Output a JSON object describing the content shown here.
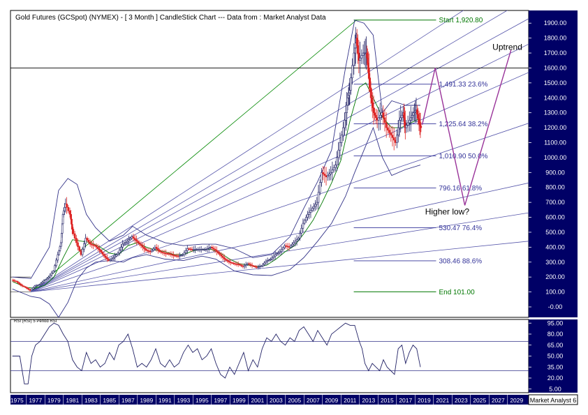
{
  "chart_data": {
    "type": "candlestick",
    "title": "Gold Futures (GCSpot) (NYMEX) -  [ 3 Month ] CandleStick Chart --- Data from : Market Analyst Data",
    "x_range": [
      1974.3,
      2030.3
    ],
    "y_range": [
      -70,
      1985
    ],
    "y_ticks": [
      -0.0,
      100,
      200,
      300,
      400,
      500,
      600,
      700,
      800,
      900,
      1000,
      1100,
      1200,
      1300,
      1400,
      1500,
      1600,
      1700,
      1800,
      1900
    ],
    "y_tick_labels": [
      "-0.00",
      "100.00",
      "200.00",
      "300.00",
      "400.00",
      "500.00",
      "600.00",
      "700.00",
      "800.00",
      "900.00",
      "1000.00",
      "1100.00",
      "1200.00",
      "1300.00",
      "1400.00",
      "1500.00",
      "1600.00",
      "1700.00",
      "1800.00",
      "1900.00"
    ],
    "x_tick_labels": [
      "1975",
      "1977",
      "1979",
      "1981",
      "1983",
      "1985",
      "1987",
      "1989",
      "1991",
      "1993",
      "1995",
      "1997",
      "1999",
      "2001",
      "2003",
      "2005",
      "2007",
      "2009",
      "2011",
      "2013",
      "2015",
      "2017",
      "2019",
      "2021",
      "2023",
      "2025",
      "2027",
      "2029"
    ],
    "x_tick_years": [
      1975,
      1977,
      1979,
      1981,
      1983,
      1985,
      1987,
      1989,
      1991,
      1993,
      1995,
      1997,
      1999,
      2001,
      2003,
      2005,
      2007,
      2009,
      2011,
      2013,
      2015,
      2017,
      2019,
      2021,
      2023,
      2025,
      2027,
      2029
    ],
    "price_path": [
      [
        1974.5,
        180
      ],
      [
        1975.0,
        170
      ],
      [
        1975.5,
        145
      ],
      [
        1976.0,
        130
      ],
      [
        1976.5,
        110
      ],
      [
        1977.0,
        140
      ],
      [
        1977.5,
        150
      ],
      [
        1978.0,
        175
      ],
      [
        1978.5,
        200
      ],
      [
        1979.0,
        240
      ],
      [
        1979.5,
        350
      ],
      [
        1979.8,
        430
      ],
      [
        1980.0,
        620
      ],
      [
        1980.3,
        690
      ],
      [
        1980.8,
        620
      ],
      [
        1981.0,
        520
      ],
      [
        1981.5,
        430
      ],
      [
        1982.0,
        350
      ],
      [
        1982.5,
        460
      ],
      [
        1983.0,
        420
      ],
      [
        1983.5,
        410
      ],
      [
        1984.0,
        380
      ],
      [
        1984.5,
        340
      ],
      [
        1985.0,
        310
      ],
      [
        1985.5,
        330
      ],
      [
        1986.0,
        360
      ],
      [
        1986.5,
        420
      ],
      [
        1987.0,
        440
      ],
      [
        1987.5,
        470
      ],
      [
        1988.0,
        440
      ],
      [
        1988.5,
        410
      ],
      [
        1989.0,
        380
      ],
      [
        1989.5,
        370
      ],
      [
        1990.0,
        400
      ],
      [
        1990.5,
        370
      ],
      [
        1991.0,
        360
      ],
      [
        1991.5,
        355
      ],
      [
        1992.0,
        345
      ],
      [
        1992.5,
        340
      ],
      [
        1993.0,
        350
      ],
      [
        1993.5,
        390
      ],
      [
        1994.0,
        385
      ],
      [
        1994.5,
        385
      ],
      [
        1995.0,
        385
      ],
      [
        1995.5,
        385
      ],
      [
        1996.0,
        400
      ],
      [
        1996.5,
        380
      ],
      [
        1997.0,
        350
      ],
      [
        1997.5,
        320
      ],
      [
        1998.0,
        300
      ],
      [
        1998.5,
        290
      ],
      [
        1999.0,
        285
      ],
      [
        1999.5,
        270
      ],
      [
        2000.0,
        290
      ],
      [
        2000.5,
        275
      ],
      [
        2001.0,
        265
      ],
      [
        2001.5,
        275
      ],
      [
        2002.0,
        305
      ],
      [
        2002.5,
        320
      ],
      [
        2003.0,
        350
      ],
      [
        2003.5,
        370
      ],
      [
        2004.0,
        410
      ],
      [
        2004.5,
        400
      ],
      [
        2005.0,
        430
      ],
      [
        2005.5,
        460
      ],
      [
        2006.0,
        560
      ],
      [
        2006.5,
        620
      ],
      [
        2007.0,
        660
      ],
      [
        2007.5,
        700
      ],
      [
        2008.0,
        900
      ],
      [
        2008.5,
        870
      ],
      [
        2009.0,
        900
      ],
      [
        2009.5,
        950
      ],
      [
        2010.0,
        1100
      ],
      [
        2010.5,
        1250
      ],
      [
        2010.8,
        1400
      ],
      [
        2011.0,
        1450
      ],
      [
        2011.5,
        1700
      ],
      [
        2011.7,
        1800
      ],
      [
        2012.0,
        1650
      ],
      [
        2012.5,
        1700
      ],
      [
        2012.8,
        1700
      ],
      [
        2013.0,
        1600
      ],
      [
        2013.3,
        1400
      ],
      [
        2013.6,
        1300
      ],
      [
        2014.0,
        1250
      ],
      [
        2014.5,
        1300
      ],
      [
        2015.0,
        1200
      ],
      [
        2015.5,
        1150
      ],
      [
        2016.0,
        1100
      ],
      [
        2016.4,
        1250
      ],
      [
        2016.8,
        1300
      ],
      [
        2017.0,
        1200
      ],
      [
        2017.5,
        1250
      ],
      [
        2017.9,
        1300
      ],
      [
        2018.2,
        1320
      ],
      [
        2018.5,
        1230
      ],
      [
        2018.7,
        1200
      ]
    ],
    "ma_path": [
      [
        1974.5,
        170
      ],
      [
        1976,
        130
      ],
      [
        1977,
        125
      ],
      [
        1978,
        145
      ],
      [
        1979,
        200
      ],
      [
        1980,
        330
      ],
      [
        1981,
        450
      ],
      [
        1982,
        440
      ],
      [
        1983,
        430
      ],
      [
        1984,
        400
      ],
      [
        1985,
        360
      ],
      [
        1986,
        350
      ],
      [
        1987,
        410
      ],
      [
        1988,
        430
      ],
      [
        1989,
        400
      ],
      [
        1990,
        380
      ],
      [
        1991,
        370
      ],
      [
        1992,
        350
      ],
      [
        1993,
        350
      ],
      [
        1994,
        375
      ],
      [
        1995,
        385
      ],
      [
        1996,
        385
      ],
      [
        1997,
        360
      ],
      [
        1998,
        320
      ],
      [
        1999,
        290
      ],
      [
        2000,
        280
      ],
      [
        2001,
        270
      ],
      [
        2002,
        280
      ],
      [
        2003,
        320
      ],
      [
        2004,
        370
      ],
      [
        2005,
        410
      ],
      [
        2006,
        490
      ],
      [
        2007,
        580
      ],
      [
        2008,
        700
      ],
      [
        2009,
        830
      ],
      [
        2010,
        980
      ],
      [
        2011,
        1250
      ],
      [
        2012,
        1470
      ],
      [
        2012.7,
        1500
      ],
      [
        2013.5,
        1400
      ],
      [
        2014.5,
        1270
      ],
      [
        2015.5,
        1200
      ],
      [
        2016.5,
        1200
      ],
      [
        2017.5,
        1230
      ],
      [
        2018.5,
        1260
      ]
    ],
    "bb_upper": [
      [
        1974.5,
        200
      ],
      [
        1976.5,
        190
      ],
      [
        1978.5,
        400
      ],
      [
        1979.5,
        780
      ],
      [
        1980.5,
        860
      ],
      [
        1981.5,
        820
      ],
      [
        1982.5,
        620
      ],
      [
        1983.5,
        530
      ],
      [
        1985,
        440
      ],
      [
        1986.5,
        480
      ],
      [
        1987.5,
        540
      ],
      [
        1989,
        480
      ],
      [
        1991,
        430
      ],
      [
        1993,
        410
      ],
      [
        1995,
        420
      ],
      [
        1996.5,
        420
      ],
      [
        1998.5,
        390
      ],
      [
        2000.5,
        330
      ],
      [
        2002.5,
        350
      ],
      [
        2004.5,
        470
      ],
      [
        2006,
        660
      ],
      [
        2007.5,
        840
      ],
      [
        2009,
        1050
      ],
      [
        2010.5,
        1600
      ],
      [
        2011.5,
        1920
      ],
      [
        2012.5,
        1900
      ],
      [
        2013.5,
        1820
      ],
      [
        2014.5,
        1300
      ],
      [
        2015.5,
        1380
      ],
      [
        2017,
        1350
      ],
      [
        2018.6,
        1350
      ]
    ],
    "bb_lower": [
      [
        1974.5,
        120
      ],
      [
        1976.5,
        70
      ],
      [
        1977.5,
        60
      ],
      [
        1978.5,
        20
      ],
      [
        1979.5,
        -70
      ],
      [
        1980.5,
        30
      ],
      [
        1981.5,
        180
      ],
      [
        1982.5,
        260
      ],
      [
        1983.5,
        300
      ],
      [
        1985,
        310
      ],
      [
        1986.5,
        300
      ],
      [
        1987.5,
        330
      ],
      [
        1989,
        350
      ],
      [
        1991,
        320
      ],
      [
        1993,
        310
      ],
      [
        1995,
        340
      ],
      [
        1996.5,
        320
      ],
      [
        1998.5,
        240
      ],
      [
        2000.5,
        215
      ],
      [
        2002.5,
        210
      ],
      [
        2004.5,
        250
      ],
      [
        2006,
        330
      ],
      [
        2007.5,
        440
      ],
      [
        2009,
        560
      ],
      [
        2010.5,
        740
      ],
      [
        2011.5,
        900
      ],
      [
        2012.5,
        1050
      ],
      [
        2013.5,
        1200
      ],
      [
        2014.5,
        1000
      ],
      [
        2015.5,
        880
      ],
      [
        2017,
        920
      ],
      [
        2018.6,
        950
      ]
    ],
    "fib_levels": [
      {
        "value": 1920.8,
        "label": "Start 1,920.80",
        "color": "#007700"
      },
      {
        "value": 1491.33,
        "label": "1,491.33 23.6%",
        "color": "#333399"
      },
      {
        "value": 1225.64,
        "label": "1,225.64 38.2%",
        "color": "#333399"
      },
      {
        "value": 1010.9,
        "label": "1,010.90 50.0%",
        "color": "#333399"
      },
      {
        "value": 796.16,
        "label": "796.16 61.8%",
        "color": "#333399"
      },
      {
        "value": 530.47,
        "label": "530.47 76.4%",
        "color": "#333399"
      },
      {
        "value": 308.46,
        "label": "308.46 88.6%",
        "color": "#333399"
      },
      {
        "value": 101.0,
        "label": "End 101.00",
        "color": "#007700"
      }
    ],
    "fan_origin": [
      1976.5,
      101
    ],
    "fan_green_target": [
      2011.7,
      1920.8
    ],
    "fan_blue_endpoints": [
      2270,
      2070,
      1930,
      1760,
      1570,
      1230,
      830,
      630,
      440
    ],
    "horizontal_line": 1600,
    "annotations": [
      {
        "text": "Uptrend",
        "x": 2028,
        "y": 1720
      },
      {
        "text": "Higher low?",
        "x": 2021.5,
        "y": 620
      }
    ],
    "projection_path": [
      [
        2018.8,
        1220
      ],
      [
        2020.2,
        1600
      ],
      [
        2023.4,
        680
      ],
      [
        2028.4,
        1720
      ]
    ],
    "rsi": {
      "title": "RSI (RSI) 5 Period RSI",
      "y_range": [
        0,
        100
      ],
      "y_ticks": [
        95,
        80,
        65,
        50,
        35,
        20,
        5
      ],
      "y_tick_labels": [
        "95.00",
        "80.00",
        "65.00",
        "50.00",
        "35.00",
        "20.00",
        "5.00"
      ],
      "levels": [
        70,
        30
      ],
      "values": [
        [
          1974.5,
          50
        ],
        [
          1975.3,
          50
        ],
        [
          1975.8,
          12
        ],
        [
          1976.2,
          12
        ],
        [
          1976.6,
          50
        ],
        [
          1977.0,
          65
        ],
        [
          1977.5,
          70
        ],
        [
          1978.0,
          80
        ],
        [
          1978.5,
          90
        ],
        [
          1979.0,
          95
        ],
        [
          1979.5,
          92
        ],
        [
          1980.0,
          80
        ],
        [
          1980.5,
          70
        ],
        [
          1981.0,
          45
        ],
        [
          1981.5,
          35
        ],
        [
          1982.0,
          30
        ],
        [
          1982.5,
          55
        ],
        [
          1983.0,
          40
        ],
        [
          1983.5,
          45
        ],
        [
          1984.0,
          35
        ],
        [
          1984.5,
          40
        ],
        [
          1985.0,
          55
        ],
        [
          1985.5,
          45
        ],
        [
          1986.0,
          65
        ],
        [
          1986.5,
          70
        ],
        [
          1987.0,
          80
        ],
        [
          1987.5,
          60
        ],
        [
          1988.0,
          35
        ],
        [
          1988.5,
          40
        ],
        [
          1989.0,
          35
        ],
        [
          1989.5,
          45
        ],
        [
          1990.0,
          60
        ],
        [
          1990.5,
          40
        ],
        [
          1991.0,
          35
        ],
        [
          1991.5,
          45
        ],
        [
          1992.0,
          35
        ],
        [
          1992.5,
          40
        ],
        [
          1993.0,
          55
        ],
        [
          1993.5,
          65
        ],
        [
          1994.0,
          55
        ],
        [
          1994.5,
          60
        ],
        [
          1995.0,
          45
        ],
        [
          1995.5,
          50
        ],
        [
          1996.0,
          60
        ],
        [
          1996.5,
          40
        ],
        [
          1997.0,
          25
        ],
        [
          1997.5,
          20
        ],
        [
          1998.0,
          35
        ],
        [
          1998.5,
          25
        ],
        [
          1999.0,
          40
        ],
        [
          1999.5,
          55
        ],
        [
          2000.0,
          30
        ],
        [
          2000.5,
          45
        ],
        [
          2001.0,
          35
        ],
        [
          2001.5,
          60
        ],
        [
          2002.0,
          75
        ],
        [
          2002.5,
          70
        ],
        [
          2003.0,
          80
        ],
        [
          2003.5,
          70
        ],
        [
          2004.0,
          65
        ],
        [
          2004.5,
          75
        ],
        [
          2005.0,
          70
        ],
        [
          2005.5,
          85
        ],
        [
          2006.0,
          90
        ],
        [
          2006.5,
          80
        ],
        [
          2007.0,
          70
        ],
        [
          2007.5,
          85
        ],
        [
          2008.0,
          75
        ],
        [
          2008.5,
          65
        ],
        [
          2009.0,
          80
        ],
        [
          2009.5,
          85
        ],
        [
          2010.0,
          90
        ],
        [
          2010.5,
          95
        ],
        [
          2011.0,
          92
        ],
        [
          2011.5,
          92
        ],
        [
          2012.0,
          70
        ],
        [
          2012.3,
          60
        ],
        [
          2012.6,
          40
        ],
        [
          2013.0,
          30
        ],
        [
          2013.4,
          40
        ],
        [
          2013.8,
          35
        ],
        [
          2014.2,
          30
        ],
        [
          2014.6,
          45
        ],
        [
          2015.0,
          35
        ],
        [
          2015.4,
          30
        ],
        [
          2015.8,
          25
        ],
        [
          2016.2,
          60
        ],
        [
          2016.6,
          65
        ],
        [
          2017.0,
          40
        ],
        [
          2017.4,
          55
        ],
        [
          2017.8,
          65
        ],
        [
          2018.2,
          60
        ],
        [
          2018.6,
          35
        ]
      ]
    }
  },
  "footer_label": "Market Analyst 6"
}
